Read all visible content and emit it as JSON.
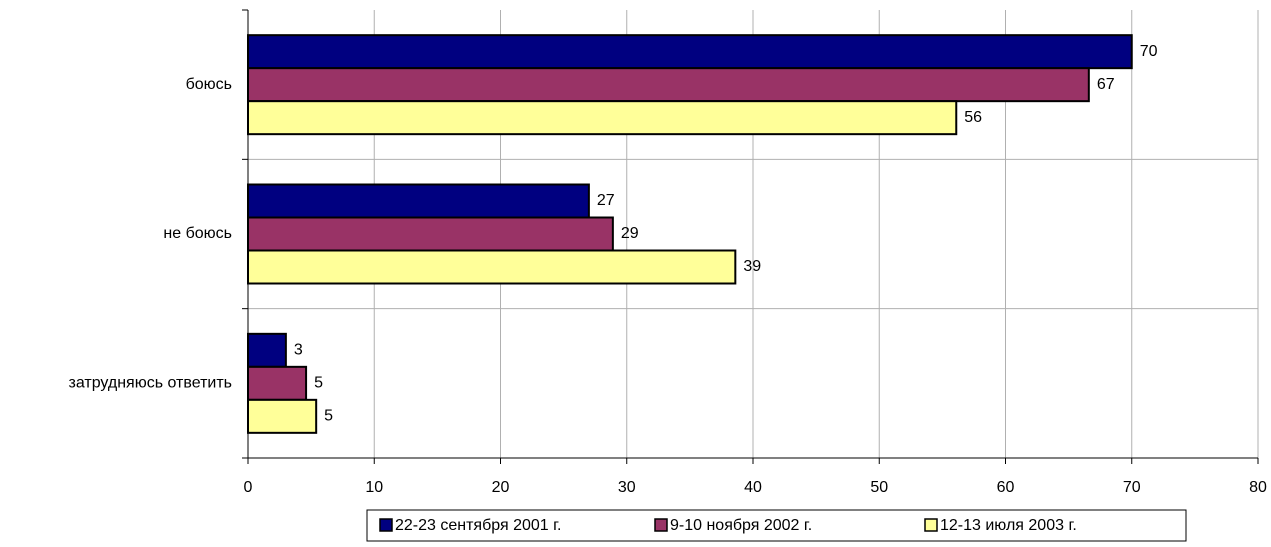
{
  "chart_data": {
    "type": "bar",
    "orientation": "horizontal",
    "categories": [
      "боюсь",
      "не боюсь",
      "затрудняюсь ответить"
    ],
    "series": [
      {
        "name": "22-23 сентября 2001 г.",
        "color": "#000080",
        "values": [
          70,
          27,
          3
        ]
      },
      {
        "name": "9-10 ноября 2002 г.",
        "color": "#993366",
        "values": [
          66.6,
          28.9,
          4.6
        ],
        "value_labels": [
          "67",
          "29",
          "5"
        ]
      },
      {
        "name": "12-13 июля 2003 г.",
        "color": "#ffff99",
        "values": [
          56.1,
          38.6,
          5.4
        ],
        "value_labels": [
          "56",
          "39",
          "5"
        ]
      }
    ],
    "xlim": [
      0,
      80
    ],
    "xticks": [
      0,
      10,
      20,
      30,
      40,
      50,
      60,
      70,
      80
    ],
    "grid": true,
    "legend": "bottom"
  }
}
